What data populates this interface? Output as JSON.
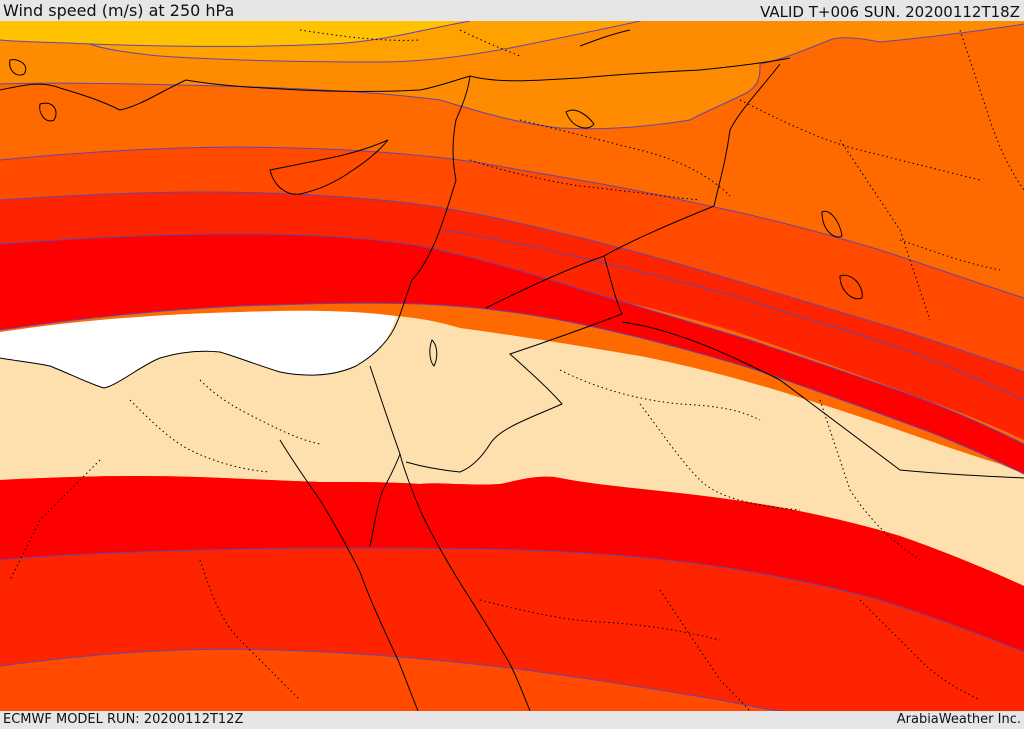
{
  "header": {
    "title": "Wind speed (m/s) at 250 hPa",
    "valid_time": "VALID T+006 SUN. 20200112T18Z"
  },
  "footer": {
    "model_run": "ECMWF MODEL RUN: 20200112T12Z",
    "credit": "ArabiaWeather Inc."
  },
  "map": {
    "variable": "wind speed",
    "pressure_level_hpa": 250,
    "fill_colors": {
      "jet_core": "#ffffff",
      "calm": "#fde0ae",
      "band_red": "#ff0000",
      "band_red_orange": "#ff2400",
      "band_orange_red": "#ff4a00",
      "band_orange": "#ff6a00",
      "band_light_orange": "#ff8c00",
      "band_amber": "#ffa200",
      "band_yellow": "#ffc200"
    },
    "contour_color": "#6644aa",
    "border_color": "#000000"
  }
}
